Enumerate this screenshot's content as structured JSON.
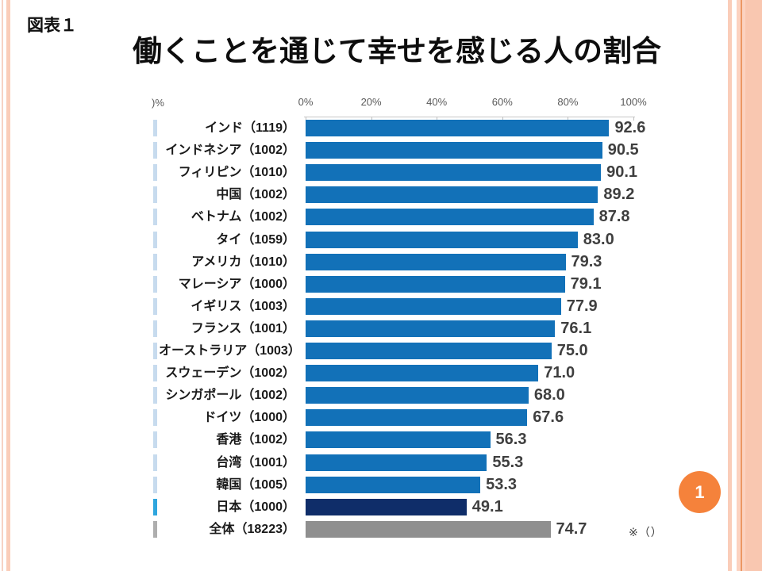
{
  "slide": {
    "figure_label": "図表１",
    "title": "働くことを通じて幸せを感じる人の割合",
    "note": "※（）",
    "page_number": "1",
    "stray_axis_text": ")%"
  },
  "colors": {
    "bar_default": "#1271b8",
    "bar_japan": "#0f2d69",
    "bar_total": "#8f8f8f",
    "sliver_default": "#c7dbee",
    "sliver_japan": "#2fa6de",
    "sliver_total": "#aeaeae",
    "axis_line": "#c6c6c6",
    "value_text": "#3f3f3f",
    "page_circle": "#f5823b",
    "border_salmon": "#facdb9",
    "border_accent": "#ec9763"
  },
  "chart_data": {
    "type": "bar",
    "orientation": "horizontal",
    "title": "働くことを通じて幸せを感じる人の割合",
    "xlabel": "",
    "ylabel": "",
    "xlim": [
      0,
      100
    ],
    "x_axis_ticks": [
      "0%",
      "20%",
      "40%",
      "60%",
      "80%",
      "100%"
    ],
    "grid": false,
    "legend": false,
    "value_labels": "right-of-bar, one decimal",
    "rows": [
      {
        "label": "インド（1119）",
        "value": 92.6,
        "type": "default"
      },
      {
        "label": "インドネシア（1002）",
        "value": 90.5,
        "type": "default"
      },
      {
        "label": "フィリピン（1010）",
        "value": 90.1,
        "type": "default"
      },
      {
        "label": "中国（1002）",
        "value": 89.2,
        "type": "default"
      },
      {
        "label": "ベトナム（1002）",
        "value": 87.8,
        "type": "default"
      },
      {
        "label": "タイ（1059）",
        "value": 83.0,
        "type": "default"
      },
      {
        "label": "アメリカ（1010）",
        "value": 79.3,
        "type": "default"
      },
      {
        "label": "マレーシア（1000）",
        "value": 79.1,
        "type": "default"
      },
      {
        "label": "イギリス（1003）",
        "value": 77.9,
        "type": "default"
      },
      {
        "label": "フランス（1001）",
        "value": 76.1,
        "type": "default"
      },
      {
        "label": "オーストラリア（1003）",
        "value": 75.0,
        "type": "default"
      },
      {
        "label": "スウェーデン（1002）",
        "value": 71.0,
        "type": "default"
      },
      {
        "label": "シンガポール（1002）",
        "value": 68.0,
        "type": "default"
      },
      {
        "label": "ドイツ（1000）",
        "value": 67.6,
        "type": "default"
      },
      {
        "label": "香港（1002）",
        "value": 56.3,
        "type": "default"
      },
      {
        "label": "台湾（1001）",
        "value": 55.3,
        "type": "default"
      },
      {
        "label": "韓国（1005）",
        "value": 53.3,
        "type": "default"
      },
      {
        "label": "日本（1000）",
        "value": 49.1,
        "type": "japan"
      },
      {
        "label": "全体（18223）",
        "value": 74.7,
        "type": "total"
      }
    ]
  }
}
